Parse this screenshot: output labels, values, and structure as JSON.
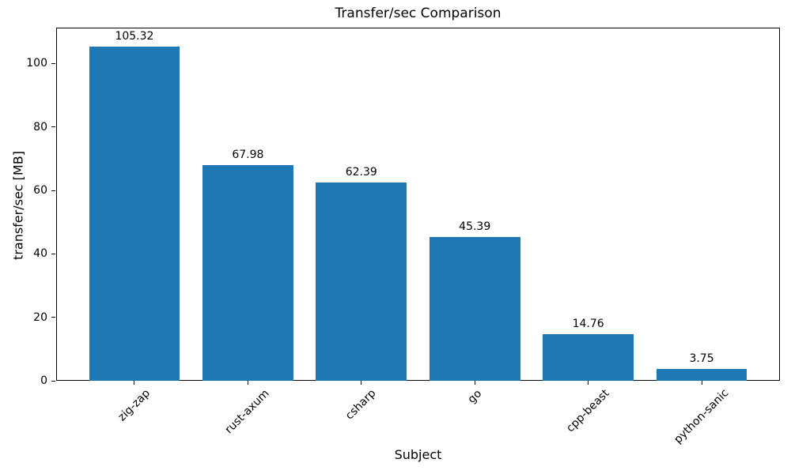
{
  "chart_data": {
    "type": "bar",
    "title": "Transfer/sec Comparison",
    "xlabel": "Subject",
    "ylabel": "transfer/sec [MB]",
    "categories": [
      "zig-zap",
      "rust-axum",
      "csharp",
      "go",
      "cpp-beast",
      "python-sanic"
    ],
    "values": [
      105.32,
      67.98,
      62.39,
      45.39,
      14.76,
      3.75
    ],
    "value_labels": [
      "105.32",
      "67.98",
      "62.39",
      "45.39",
      "14.76",
      "3.75"
    ],
    "yticks": [
      0,
      20,
      40,
      60,
      80,
      100
    ],
    "ytick_labels": [
      "0",
      "20",
      "40",
      "60",
      "80",
      "100"
    ],
    "ylim": [
      0,
      111.3
    ],
    "xlim": [
      -0.69,
      5.69
    ],
    "bar_width": 0.8,
    "bar_color": "#1f77b4",
    "text_color": "#000000",
    "spine_color": "#000000",
    "background_color": "#ffffff",
    "grid": false,
    "legend": null
  }
}
